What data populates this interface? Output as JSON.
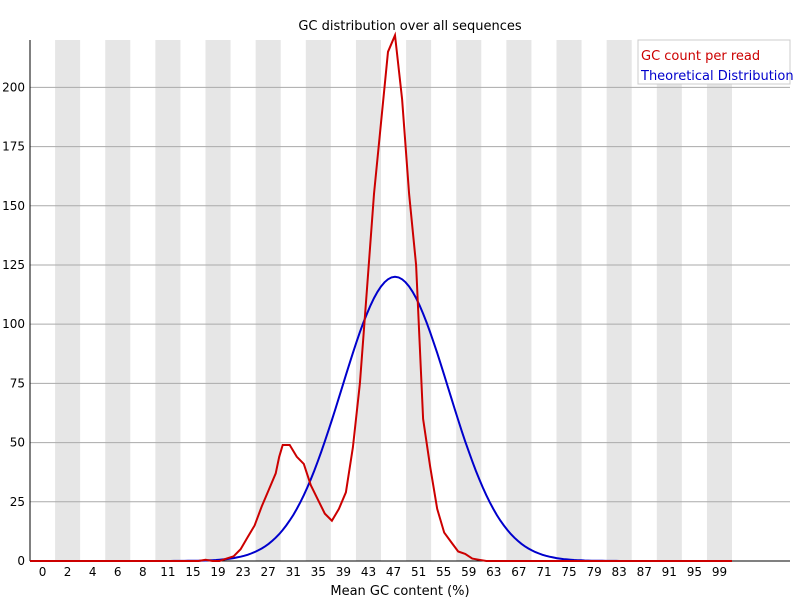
{
  "chart_data": {
    "type": "line",
    "title": "GC distribution over all sequences",
    "xlabel": "Mean GC content (%)",
    "ylabel": "",
    "xlim": [
      0,
      100
    ],
    "ylim": [
      0,
      220
    ],
    "x_tick_labels": [
      "0",
      "2",
      "4",
      "6",
      "8",
      "11",
      "15",
      "19",
      "23",
      "27",
      "31",
      "35",
      "39",
      "43",
      "47",
      "51",
      "55",
      "59",
      "63",
      "67",
      "71",
      "75",
      "79",
      "83",
      "87",
      "91",
      "95",
      "99"
    ],
    "y_tick_values": [
      0,
      25,
      50,
      75,
      100,
      125,
      150,
      175,
      200
    ],
    "grid": "horizontal lines with alternating vertical bands",
    "legend_position": "top-right",
    "band_color": "#e6e6e6",
    "grid_color": "#aaaaaa",
    "series": [
      {
        "name": "GC count per read",
        "color": "#cc0000",
        "x": [
          0,
          5,
          10,
          15,
          20,
          23,
          24,
          25,
          26,
          27,
          28,
          29,
          30,
          31,
          32,
          33,
          34,
          35,
          35.5,
          36,
          36.5,
          37,
          38,
          39,
          40,
          41,
          42,
          43,
          44,
          45,
          46,
          47,
          48,
          49,
          50,
          51,
          52,
          53,
          54,
          55,
          56,
          57,
          58,
          59,
          60,
          61,
          62,
          63,
          64,
          65,
          66,
          67,
          68,
          70,
          75,
          80,
          85,
          90,
          95,
          100
        ],
        "y": [
          0,
          0,
          0,
          0,
          0,
          0,
          0,
          0.5,
          0,
          0,
          1,
          2,
          5,
          10,
          15,
          23,
          30,
          37,
          44,
          49,
          49,
          49,
          44,
          41,
          32,
          26,
          20,
          17,
          22,
          29,
          48,
          75,
          115,
          155,
          185,
          215,
          222,
          195,
          155,
          125,
          60,
          40,
          22,
          12,
          8,
          4,
          3,
          1,
          0.5,
          0,
          0,
          0,
          0,
          0,
          0,
          0,
          0,
          0,
          0,
          0
        ]
      },
      {
        "name": "Theoretical Distribution",
        "color": "#0000cc",
        "mean": 52,
        "sd": 7.6,
        "peak": 120
      }
    ]
  }
}
